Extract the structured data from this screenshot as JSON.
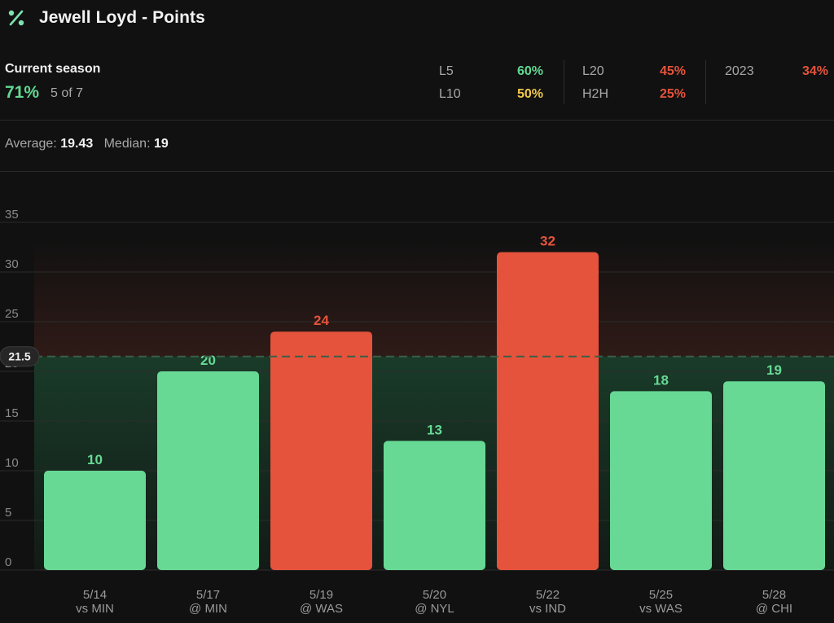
{
  "header": {
    "title": "Jewell Loyd - Points",
    "icon": "percent-icon"
  },
  "summary": {
    "current_season_label": "Current season",
    "current_season_pct": "71%",
    "current_season_count": "5 of 7",
    "stats": [
      {
        "label": "L5",
        "value": "60%",
        "color": "#62d892"
      },
      {
        "label": "L10",
        "value": "50%",
        "color": "#f2c94c"
      },
      {
        "label": "L20",
        "value": "45%",
        "color": "#e5533c"
      },
      {
        "label": "H2H",
        "value": "25%",
        "color": "#e5533c"
      },
      {
        "label": "2023",
        "value": "34%",
        "color": "#e5533c"
      }
    ]
  },
  "averages": {
    "average_label": "Average:",
    "average_value": "19.43",
    "median_label": "Median:",
    "median_value": "19"
  },
  "colors": {
    "over": "#e5533c",
    "under": "#67d995",
    "background": "#111111"
  },
  "chart_data": {
    "type": "bar",
    "threshold": 21.5,
    "threshold_label": "21.5",
    "ylim": [
      0,
      35
    ],
    "yticks": [
      0,
      5,
      10,
      15,
      20,
      25,
      30,
      35
    ],
    "categories": [
      {
        "date": "5/14",
        "opponent": "vs MIN"
      },
      {
        "date": "5/17",
        "opponent": "@ MIN"
      },
      {
        "date": "5/19",
        "opponent": "@ WAS"
      },
      {
        "date": "5/20",
        "opponent": "@ NYL"
      },
      {
        "date": "5/22",
        "opponent": "vs IND"
      },
      {
        "date": "5/25",
        "opponent": "vs WAS"
      },
      {
        "date": "5/28",
        "opponent": "@ CHI"
      }
    ],
    "values": [
      10,
      20,
      24,
      13,
      32,
      18,
      19
    ]
  }
}
